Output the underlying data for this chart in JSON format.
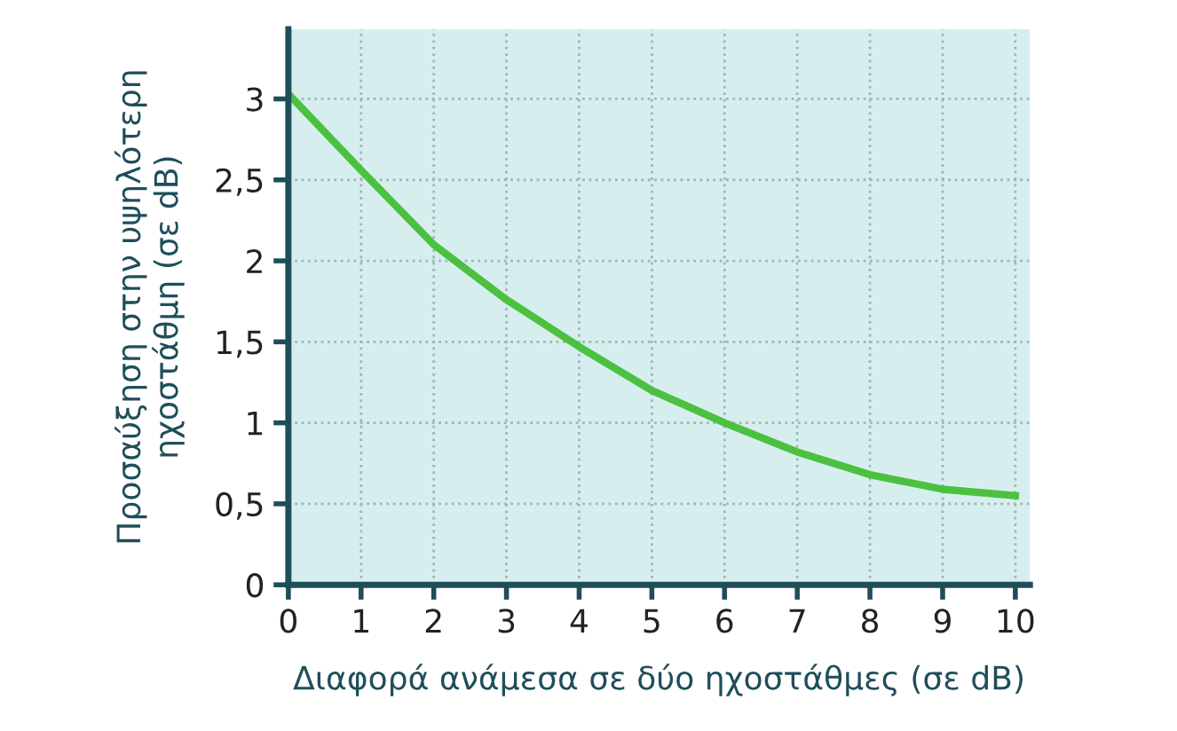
{
  "chart_data": {
    "type": "line",
    "xlabel": "Διαφορά ανάμεσα σε δύο ηχοστάθμες (σε dB)",
    "ylabel": "Προσαύξηση στην υψηλότερη ηχοστάθμη (σε dB)",
    "x": [
      0,
      1,
      2,
      3,
      4,
      5,
      6,
      7,
      8,
      9,
      10
    ],
    "series": [
      {
        "color": "#4cc040",
        "values": [
          3.03,
          2.56,
          2.1,
          1.76,
          1.47,
          1.2,
          1.0,
          0.82,
          0.68,
          0.59,
          0.55
        ]
      }
    ],
    "xlim": [
      0,
      10.2
    ],
    "ylim": [
      0,
      3.43
    ],
    "xticks": [
      0,
      1,
      2,
      3,
      4,
      5,
      6,
      7,
      8,
      9,
      10
    ],
    "yticks": [
      0,
      {
        "value": 0.5,
        "label": "0,5"
      },
      1,
      {
        "value": 1.5,
        "label": "1,5"
      },
      2,
      {
        "value": 2.5,
        "label": "2,5"
      },
      3
    ],
    "grid": true,
    "marker": "none",
    "line_style": "solid"
  }
}
